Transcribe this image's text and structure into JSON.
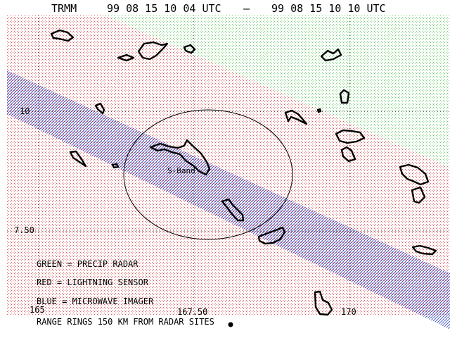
{
  "header": {
    "satellite": "TRMM",
    "start_time": "99 08 15 10 04 UTC",
    "separator": "–",
    "end_time": "99 08 15 10 10 UTC"
  },
  "axes": {
    "lat_labels": [
      "10",
      "7.50"
    ],
    "lon_labels": [
      "165",
      "167.50",
      "170"
    ]
  },
  "radar_site": {
    "label": "S-Band",
    "range_ring_km": 150
  },
  "legend": {
    "green": "GREEN = PRECIP RADAR",
    "red": "RED = LIGHTNING SENSOR",
    "blue": "BLUE = MICROWAVE IMAGER",
    "rings": "RANGE RINGS 150 KM FROM RADAR SITES"
  },
  "colors": {
    "precip_radar": "#6fcf6f",
    "lightning_sensor": "#e05a5a",
    "microwave_imager": "#3a4fc8",
    "coastline": "#000000"
  }
}
